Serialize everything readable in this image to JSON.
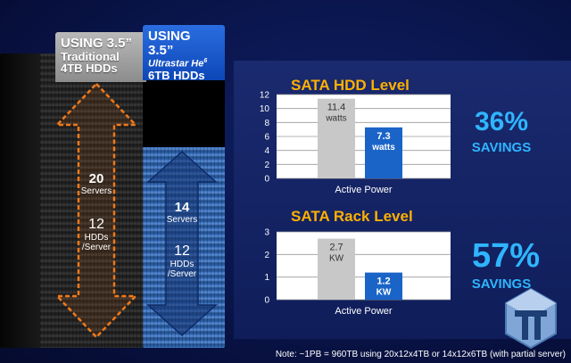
{
  "left_rack": {
    "header_line1": "USING 3.5”",
    "header_line2": "Traditional",
    "header_line3": "4TB HDDs",
    "servers_count": "20",
    "servers_label": "Servers",
    "hdds_count": "12",
    "hdds_label1": "HDDs",
    "hdds_label2": "/Server"
  },
  "right_rack": {
    "header_line1": "USING 3.5”",
    "header_line2": "Ultrastar He",
    "header_sup": "6",
    "header_line3": "6TB HDDs",
    "servers_count": "14",
    "servers_label": "Servers",
    "hdds_count": "12",
    "hdds_label1": "HDDs",
    "hdds_label2": "/Server"
  },
  "chart_data": [
    {
      "type": "bar",
      "title": "SATA HDD Level",
      "categories": [
        "Traditional 4TB",
        "Ultrastar He6 6TB"
      ],
      "values": [
        11.4,
        7.3
      ],
      "value_labels": [
        "11.4",
        "7.3"
      ],
      "unit_label": "watts",
      "xlabel": "Active Power",
      "ylim": [
        0,
        12
      ],
      "yticks": [
        0,
        2,
        4,
        6,
        8,
        10,
        12
      ],
      "colors": [
        "#c8c8c8",
        "#1a64c8"
      ],
      "grid": true,
      "savings_pct": "36%",
      "savings_word": "SAVINGS"
    },
    {
      "type": "bar",
      "title": "SATA Rack Level",
      "categories": [
        "Traditional 4TB",
        "Ultrastar He6 6TB"
      ],
      "values": [
        2.7,
        1.2
      ],
      "value_labels": [
        "2.7",
        "1.2"
      ],
      "unit_label": "KW",
      "xlabel": "Active Power",
      "ylim": [
        0,
        3
      ],
      "yticks": [
        0,
        1,
        2,
        3
      ],
      "colors": [
        "#c8c8c8",
        "#1a64c8"
      ],
      "grid": true,
      "savings_pct": "57%",
      "savings_word": "SAVINGS"
    }
  ],
  "note": "Note: ~1PB = 960TB using 20x12x4TB or 14x12x6TB (with partial server)",
  "logo_icon": "tt-logo-icon"
}
